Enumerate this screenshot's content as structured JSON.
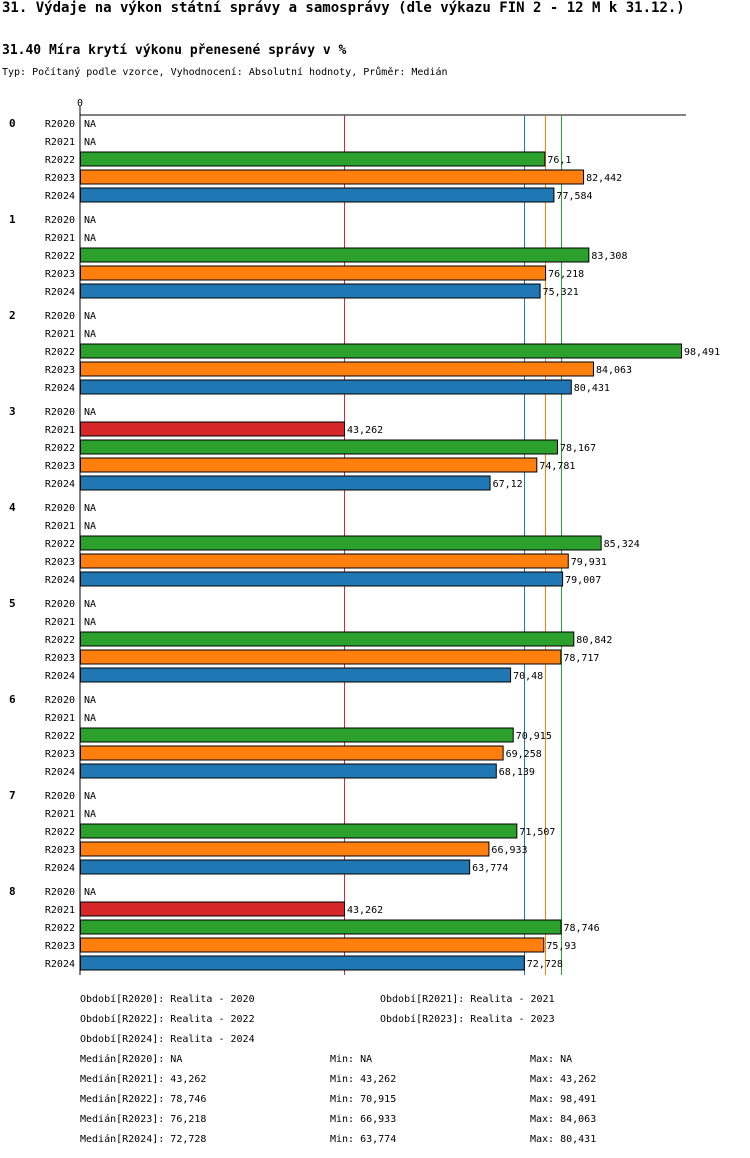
{
  "page": {
    "title": "31. Výdaje na výkon státní správy a samosprávy (dle výkazu FIN 2 - 12 M k 31.12.)",
    "subtitle": "31.40 Míra krytí výkonu přenesené správy v %",
    "type_line": "Typ: Počítaný podle vzorce, Vyhodnocení: Absolutní hodnoty, Průměr: Medián"
  },
  "chart_data": {
    "type": "bar",
    "orientation": "horizontal",
    "title": "31.40 Míra krytí výkonu přenesené správy v %",
    "x_axis_zero_label": "0",
    "xlim": [
      0,
      98.491
    ],
    "na_label": "NA",
    "colors": {
      "R2020": "#8c8c8c",
      "R2021": "#d62728",
      "R2022": "#2ca02c",
      "R2023": "#ff7f0e",
      "R2024": "#1f77b4"
    },
    "series_names": [
      "R2020",
      "R2021",
      "R2022",
      "R2023",
      "R2024"
    ],
    "groups": [
      {
        "label": "0",
        "values": [
          null,
          null,
          76.1,
          82.442,
          77.584
        ],
        "texts": [
          "NA",
          "NA",
          "76,1",
          "82,442",
          "77,584"
        ]
      },
      {
        "label": "1",
        "values": [
          null,
          null,
          83.308,
          76.218,
          75.321
        ],
        "texts": [
          "NA",
          "NA",
          "83,308",
          "76,218",
          "75,321"
        ]
      },
      {
        "label": "2",
        "values": [
          null,
          null,
          98.491,
          84.063,
          80.431
        ],
        "texts": [
          "NA",
          "NA",
          "98,491",
          "84,063",
          "80,431"
        ]
      },
      {
        "label": "3",
        "values": [
          null,
          43.262,
          78.167,
          74.781,
          67.12
        ],
        "texts": [
          "NA",
          "43,262",
          "78,167",
          "74,781",
          "67,12"
        ]
      },
      {
        "label": "4",
        "values": [
          null,
          null,
          85.324,
          79.931,
          79.007
        ],
        "texts": [
          "NA",
          "NA",
          "85,324",
          "79,931",
          "79,007"
        ]
      },
      {
        "label": "5",
        "values": [
          null,
          null,
          80.842,
          78.717,
          70.48
        ],
        "texts": [
          "NA",
          "NA",
          "80,842",
          "78,717",
          "70,48"
        ]
      },
      {
        "label": "6",
        "values": [
          null,
          null,
          70.915,
          69.258,
          68.139
        ],
        "texts": [
          "NA",
          "NA",
          "70,915",
          "69,258",
          "68,139"
        ]
      },
      {
        "label": "7",
        "values": [
          null,
          null,
          71.507,
          66.933,
          63.774
        ],
        "texts": [
          "NA",
          "NA",
          "71,507",
          "66,933",
          "63,774"
        ]
      },
      {
        "label": "8",
        "values": [
          null,
          43.262,
          78.746,
          75.93,
          72.728
        ],
        "texts": [
          "NA",
          "43,262",
          "78,746",
          "75,93",
          "72,728"
        ]
      }
    ],
    "median_lines": [
      {
        "series": "R2021",
        "value": 43.262
      },
      {
        "series": "R2022",
        "value": 78.746
      },
      {
        "series": "R2023",
        "value": 76.218
      },
      {
        "series": "R2024",
        "value": 72.728
      }
    ]
  },
  "legend": {
    "periods": [
      "Období[R2020]: Realita - 2020",
      "Období[R2021]: Realita - 2021",
      "Období[R2022]: Realita - 2022",
      "Období[R2023]: Realita - 2023",
      "Období[R2024]: Realita - 2024"
    ],
    "stats": [
      {
        "median": "Medián[R2020]: NA",
        "min": "Min: NA",
        "max": "Max: NA"
      },
      {
        "median": "Medián[R2021]: 43,262",
        "min": "Min: 43,262",
        "max": "Max: 43,262"
      },
      {
        "median": "Medián[R2022]: 78,746",
        "min": "Min: 70,915",
        "max": "Max: 98,491"
      },
      {
        "median": "Medián[R2023]: 76,218",
        "min": "Min: 66,933",
        "max": "Max: 84,063"
      },
      {
        "median": "Medián[R2024]: 72,728",
        "min": "Min: 63,774",
        "max": "Max: 80,431"
      }
    ]
  }
}
